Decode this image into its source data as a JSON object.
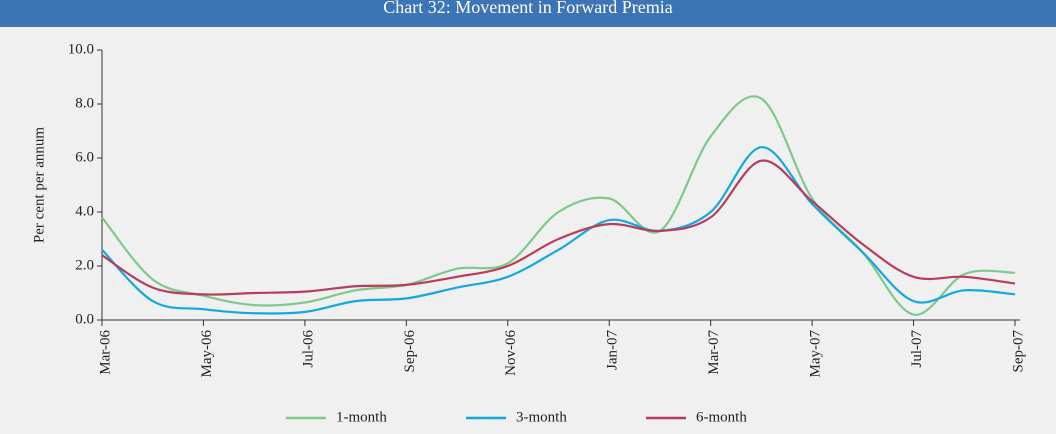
{
  "chart_data": {
    "type": "line",
    "title": "Chart 32: Movement in Forward Premia",
    "y_label": "Per cent per annum",
    "categories": [
      "Mar-06",
      null,
      "May-06",
      null,
      "Jul-06",
      null,
      "Sep-06",
      null,
      "Nov-06",
      null,
      "Jan-07",
      null,
      "Mar-07",
      null,
      "May-07",
      null,
      "Jul-07",
      null,
      "Sep-07"
    ],
    "series": [
      {
        "name": "1-month",
        "color": "#7dc98a",
        "values": [
          3.8,
          1.5,
          0.9,
          0.55,
          0.65,
          1.1,
          1.3,
          1.9,
          2.1,
          4.0,
          4.5,
          3.3,
          6.8,
          8.2,
          4.5,
          2.5,
          0.2,
          1.7,
          1.75
        ]
      },
      {
        "name": "3-month",
        "color": "#14a8e0",
        "values": [
          2.6,
          0.7,
          0.4,
          0.25,
          0.3,
          0.7,
          0.8,
          1.2,
          1.6,
          2.6,
          3.7,
          3.3,
          4.0,
          6.4,
          4.3,
          2.5,
          0.7,
          1.1,
          0.95
        ]
      },
      {
        "name": "6-month",
        "color": "#b83c5c",
        "values": [
          2.4,
          1.2,
          0.95,
          1.0,
          1.05,
          1.25,
          1.3,
          1.6,
          2.0,
          3.0,
          3.55,
          3.3,
          3.8,
          5.9,
          4.4,
          2.8,
          1.6,
          1.6,
          1.35
        ]
      }
    ],
    "ylim": [
      0,
      10
    ],
    "yticks": [
      {
        "value": 0,
        "label": "0.0"
      },
      {
        "value": 2,
        "label": "2.0"
      },
      {
        "value": 4,
        "label": "4.0"
      },
      {
        "value": 6,
        "label": "6.0"
      },
      {
        "value": 8,
        "label": "8.0"
      },
      {
        "value": 10,
        "label": "10.0"
      }
    ],
    "legend": "bottom"
  }
}
